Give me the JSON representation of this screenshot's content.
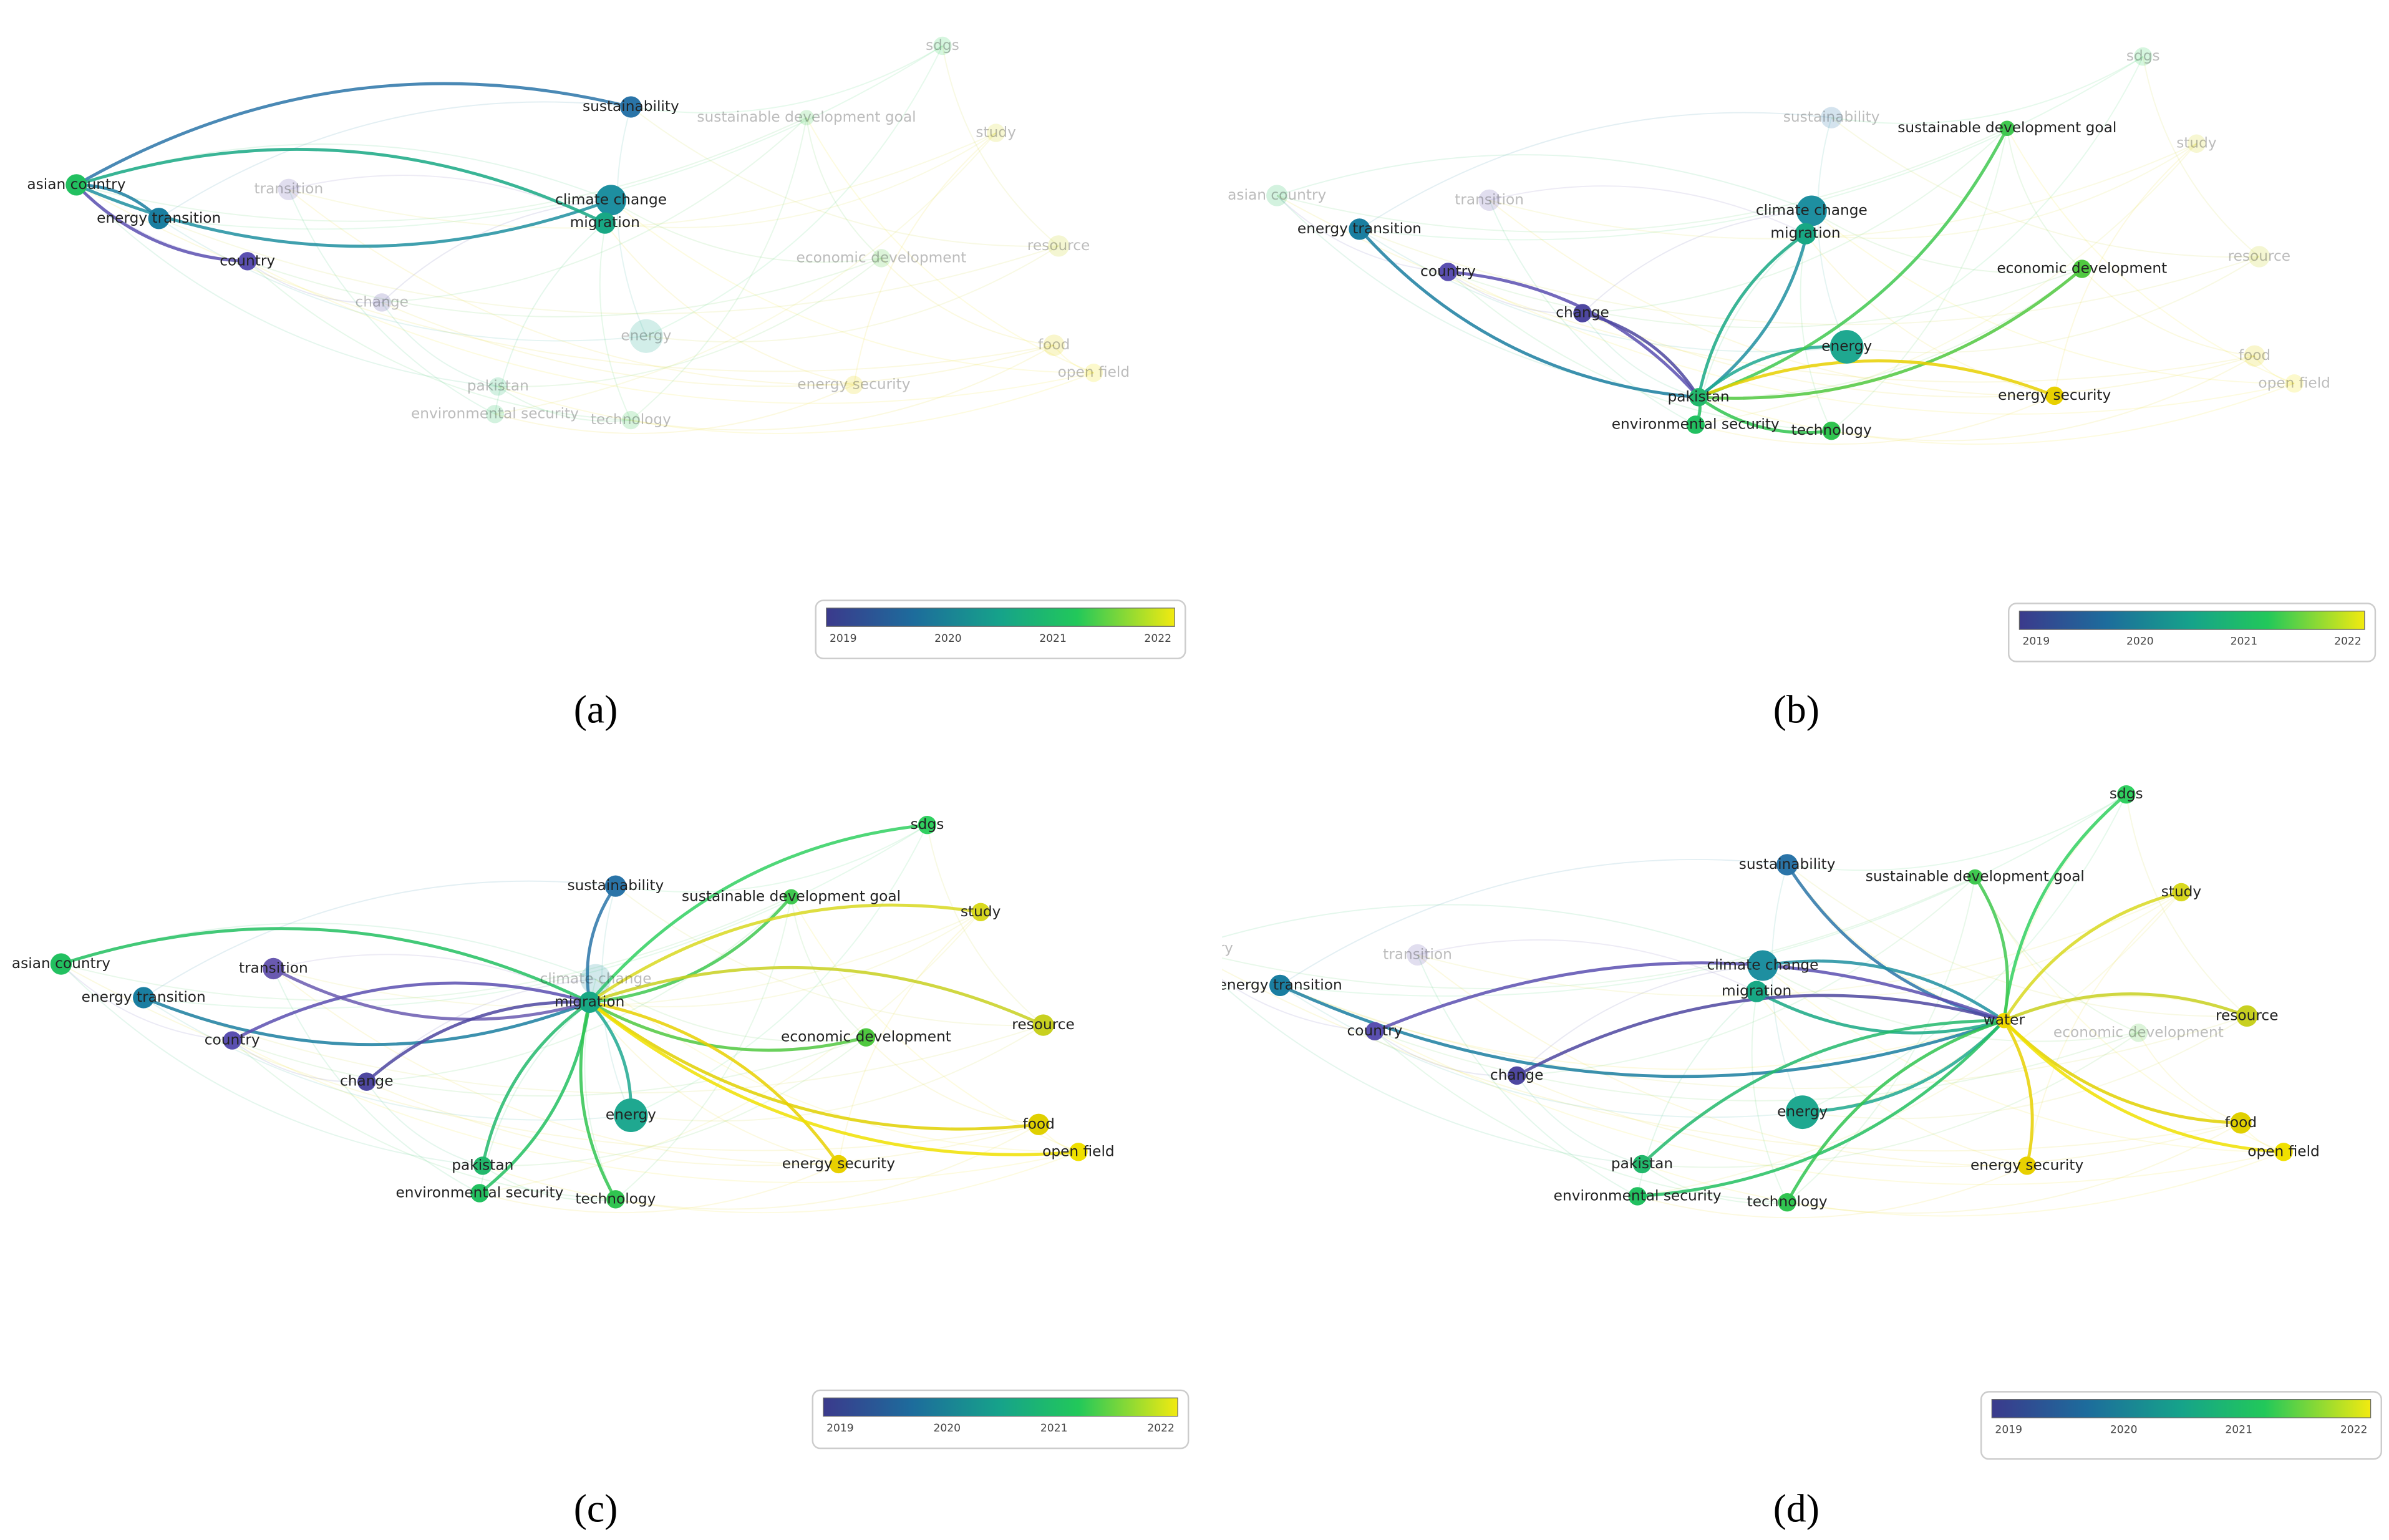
{
  "panels": [
    {
      "label": "(a)",
      "keywords": [
        "sustainability",
        "climate change",
        "migration",
        "asian country",
        "energy transition",
        "country",
        "transition",
        "change",
        "energy",
        "pakistan",
        "environmental security",
        "technology",
        "sdgs",
        "sustainable development goal",
        "study",
        "economic development",
        "resource",
        "food",
        "energy security",
        "open field"
      ],
      "legend": {
        "ticks": [
          2019,
          2020,
          2021,
          2022
        ]
      }
    },
    {
      "label": "(b)",
      "keywords": [
        "sustainability",
        "climate change",
        "migration",
        "asian country",
        "energy transition",
        "country",
        "transition",
        "change",
        "energy",
        "pakistan",
        "environmental security",
        "technology",
        "sdgs",
        "sustainable development goal",
        "study",
        "economic development",
        "resource",
        "food",
        "energy security",
        "open field"
      ],
      "legend": {
        "ticks": [
          2019,
          2020,
          2021,
          2022
        ]
      }
    },
    {
      "label": "(c)",
      "keywords": [
        "sustainability",
        "climate change",
        "migration",
        "asian country",
        "energy transition",
        "country",
        "transition",
        "change",
        "energy",
        "pakistan",
        "environmental security",
        "technology",
        "sdgs",
        "sustainable development goal",
        "study",
        "economic development",
        "resource",
        "food",
        "energy security",
        "open field"
      ],
      "legend": {
        "ticks": [
          2019,
          2020,
          2021,
          2022
        ]
      }
    },
    {
      "label": "(d)",
      "keywords": [
        "sustainability",
        "climate change",
        "migration",
        "asian country",
        "energy transition",
        "country",
        "transition",
        "change",
        "energy",
        "pakistan",
        "environmental security",
        "technology",
        "sdgs",
        "sustainable development goal",
        "study",
        "economic development",
        "resource",
        "food",
        "energy security",
        "open field",
        "water"
      ],
      "legend": {
        "ticks": [
          2019,
          2020,
          2021,
          2022
        ]
      }
    }
  ]
}
